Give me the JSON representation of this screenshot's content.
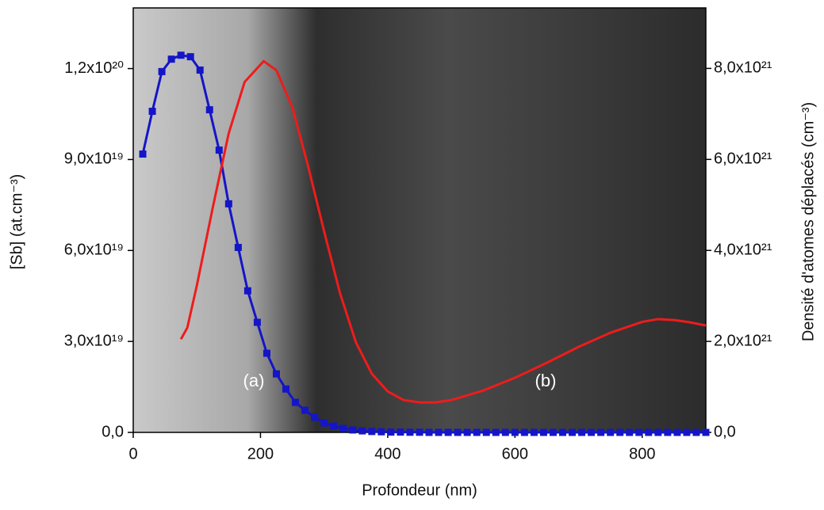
{
  "chart_data": {
    "type": "line",
    "x_label": "Profondeur (nm)",
    "y_label": "[Sb] (at.cm⁻³)",
    "y2_label": "Densité d'atomes déplacés (cm⁻³)",
    "annotations": [
      "(a)",
      "(b)"
    ],
    "xlim": [
      0,
      900
    ],
    "xticks": [
      0,
      200,
      400,
      600,
      800
    ],
    "ylim": [
      0,
      1.4e+20
    ],
    "yticks": [
      {
        "value": 0,
        "label": "0,0"
      },
      {
        "value": 3e+19,
        "label": "3,0x10¹⁹"
      },
      {
        "value": 6e+19,
        "label": "6,0x10¹⁹"
      },
      {
        "value": 9e+19,
        "label": "9,0x10¹⁹"
      },
      {
        "value": 1.2e+20,
        "label": "1,2x10²⁰"
      }
    ],
    "y2lim": [
      0,
      9.33e+21
    ],
    "y2ticks": [
      {
        "value": 0,
        "label": "0,0"
      },
      {
        "value": 2e+21,
        "label": "2,0x10²¹"
      },
      {
        "value": 4e+21,
        "label": "4,0x10²¹"
      },
      {
        "value": 6e+21,
        "label": "6,0x10²¹"
      },
      {
        "value": 8e+21,
        "label": "8,0x10²¹"
      }
    ],
    "series": [
      {
        "color": "#1515c8",
        "marker": "square",
        "x": [
          15,
          30,
          45,
          60,
          75,
          90,
          105,
          120,
          135,
          150,
          165,
          180,
          195,
          210,
          225,
          240,
          255,
          270,
          285,
          300,
          315,
          330,
          345,
          360,
          375,
          390,
          405,
          420,
          435,
          450,
          465,
          480,
          495,
          510,
          525,
          540,
          555,
          570,
          585,
          600,
          615,
          630,
          645,
          660,
          675,
          690,
          705,
          720,
          735,
          750,
          765,
          780,
          795,
          810,
          825,
          840,
          855,
          870,
          885,
          900
        ],
        "values": [
          9.18e+19,
          1.059e+20,
          1.19e+20,
          1.231e+20,
          1.244e+20,
          1.239e+20,
          1.195e+20,
          1.064e+20,
          9.31e+19,
          7.54e+19,
          6.1e+19,
          4.67e+19,
          3.63e+19,
          2.61e+19,
          1.93e+19,
          1.43e+19,
          9.9e+18,
          7.3e+18,
          5e+18,
          3.1e+18,
          2.1e+18,
          1.3e+18,
          8e+17,
          5e+17,
          3e+17,
          2e+17,
          1e+17,
          1e+17,
          5e+16,
          5e+16,
          0,
          0,
          0,
          0,
          0,
          0,
          0,
          0,
          0,
          0,
          0,
          0,
          0,
          0,
          0,
          0,
          0,
          0,
          0,
          0,
          0,
          0,
          0,
          0,
          0,
          0,
          0,
          0,
          0,
          0
        ]
      },
      {
        "color": "#ee1c1c",
        "axis": "y2",
        "x": [
          75,
          85,
          100,
          125,
          150,
          175,
          205,
          225,
          250,
          275,
          300,
          325,
          350,
          375,
          400,
          425,
          450,
          475,
          500,
          550,
          600,
          650,
          700,
          750,
          800,
          825,
          850,
          875,
          900
        ],
        "values": [
          2.05e+21,
          2.3e+21,
          3.23e+21,
          4.94e+21,
          6.57e+21,
          7.7e+21,
          8.16e+21,
          7.96e+21,
          7.15e+21,
          5.84e+21,
          4.42e+21,
          3.06e+21,
          1.98e+21,
          1.29e+21,
          9e+20,
          7.1e+20,
          6.6e+20,
          6.6e+20,
          7.1e+20,
          9.2e+20,
          1.2e+21,
          1.53e+21,
          1.88e+21,
          2.19e+21,
          2.43e+21,
          2.49e+21,
          2.47e+21,
          2.42e+21,
          2.35e+21
        ]
      }
    ]
  }
}
